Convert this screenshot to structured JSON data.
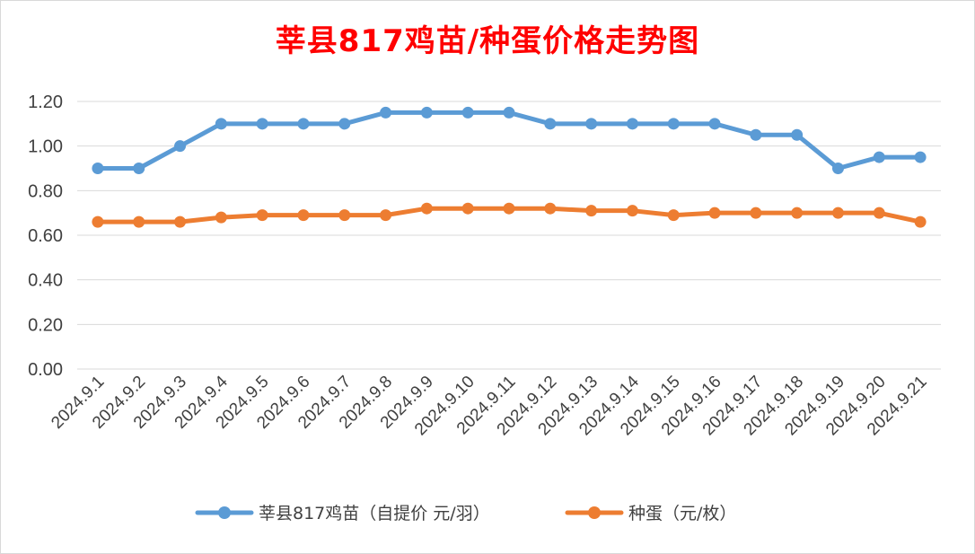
{
  "chart_data": {
    "type": "line",
    "title": "莘县817鸡苗/种蛋价格走势图",
    "xlabel": "",
    "ylabel": "",
    "ylim": [
      0,
      1.2
    ],
    "yticks": [
      "0.00",
      "0.20",
      "0.40",
      "0.60",
      "0.80",
      "1.00",
      "1.20"
    ],
    "grid": true,
    "legend_position": "bottom",
    "categories": [
      "2024.9.1",
      "2024.9.2",
      "2024.9.3",
      "2024.9.4",
      "2024.9.5",
      "2024.9.6",
      "2024.9.7",
      "2024.9.8",
      "2024.9.9",
      "2024.9.10",
      "2024.9.11",
      "2024.9.12",
      "2024.9.13",
      "2024.9.14",
      "2024.9.15",
      "2024.9.16",
      "2024.9.17",
      "2024.9.18",
      "2024.9.19",
      "2024.9.20",
      "2024.9.21"
    ],
    "series": [
      {
        "name": "莘县817鸡苗（自提价 元/羽）",
        "color": "#5b9bd5",
        "values": [
          0.9,
          0.9,
          1.0,
          1.1,
          1.1,
          1.1,
          1.1,
          1.15,
          1.15,
          1.15,
          1.15,
          1.1,
          1.1,
          1.1,
          1.1,
          1.1,
          1.05,
          1.05,
          0.9,
          0.95,
          0.95
        ]
      },
      {
        "name": "种蛋（元/枚）",
        "color": "#ed7d31",
        "values": [
          0.66,
          0.66,
          0.66,
          0.68,
          0.69,
          0.69,
          0.69,
          0.69,
          0.72,
          0.72,
          0.72,
          0.72,
          0.71,
          0.71,
          0.69,
          0.7,
          0.7,
          0.7,
          0.7,
          0.7,
          0.66
        ]
      }
    ]
  }
}
